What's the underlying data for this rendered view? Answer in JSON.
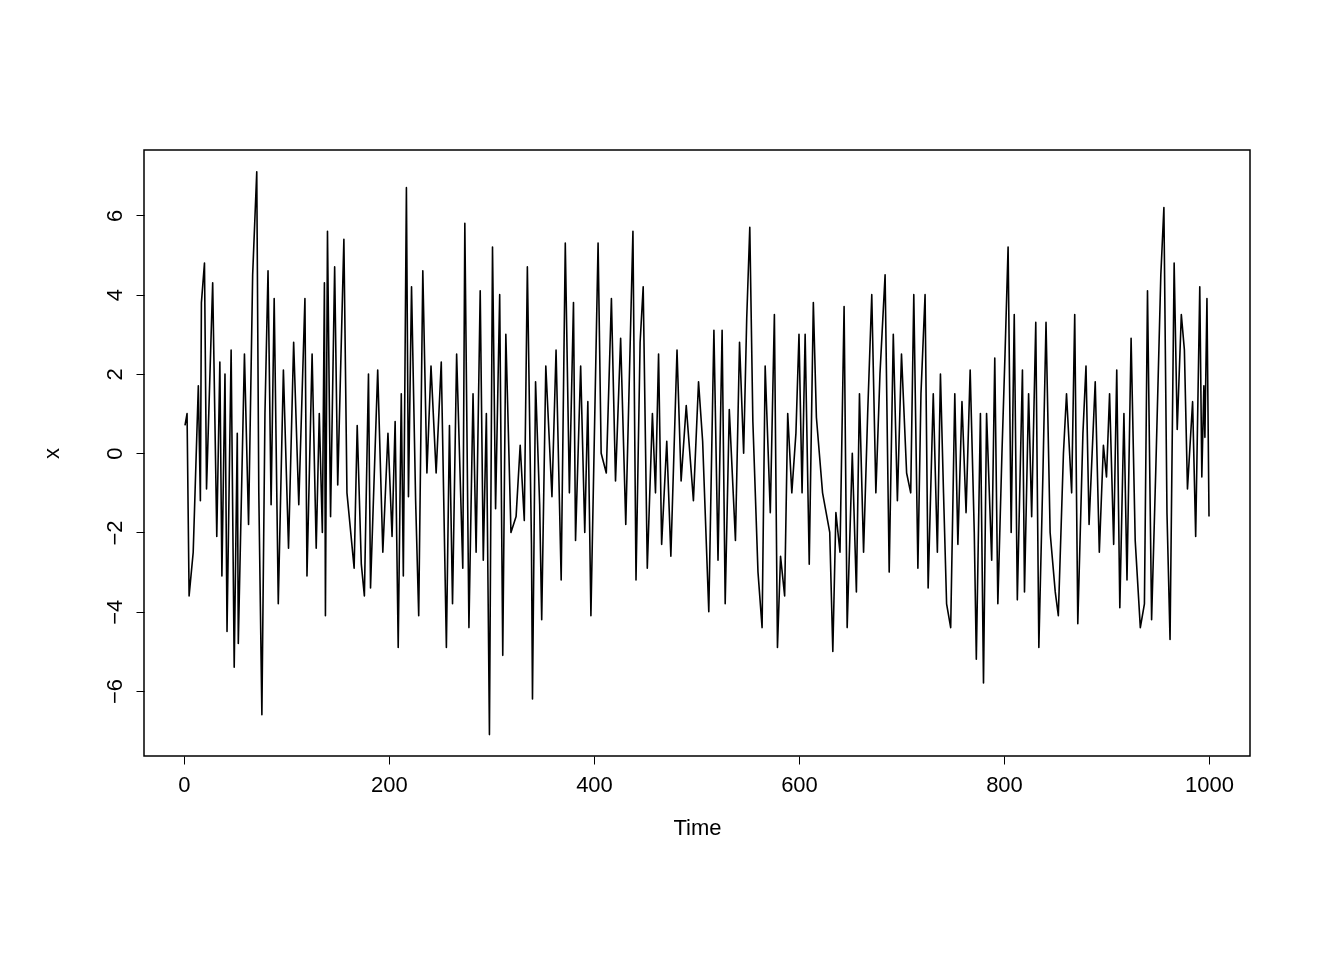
{
  "chart_data": {
    "type": "line",
    "xlabel": "Time",
    "ylabel": "x",
    "x": [
      1,
      3,
      5,
      9,
      14,
      16,
      17,
      20,
      22,
      28,
      32,
      35,
      37,
      40,
      42,
      46,
      49,
      52,
      53,
      59,
      63,
      67,
      71,
      73,
      76,
      79,
      82,
      85,
      88,
      92,
      97,
      102,
      107,
      112,
      118,
      120,
      125,
      129,
      132,
      135,
      137,
      138,
      140,
      143,
      147,
      150,
      156,
      159,
      166,
      169,
      173,
      176,
      180,
      182,
      189,
      194,
      199,
      203,
      206,
      209,
      212,
      214,
      217,
      219,
      222,
      226,
      229,
      233,
      237,
      241,
      246,
      251,
      256,
      259,
      262,
      266,
      272,
      274,
      278,
      282,
      285,
      289,
      292,
      295,
      298,
      301,
      304,
      308,
      311,
      314,
      319,
      324,
      328,
      332,
      335,
      339,
      340,
      343,
      347,
      349,
      353,
      359,
      363,
      368,
      372,
      376,
      380,
      382,
      387,
      391,
      394,
      397,
      404,
      407,
      412,
      417,
      421,
      426,
      431,
      438,
      441,
      445,
      448,
      452,
      457,
      460,
      463,
      466,
      471,
      475,
      481,
      485,
      490,
      497,
      502,
      506,
      512,
      517,
      521,
      525,
      528,
      532,
      538,
      542,
      546,
      549,
      552,
      555,
      560,
      564,
      567,
      572,
      576,
      579,
      582,
      586,
      589,
      593,
      597,
      600,
      603,
      606,
      610,
      614,
      617,
      623,
      630,
      633,
      636,
      640,
      644,
      647,
      652,
      656,
      659,
      663,
      667,
      671,
      675,
      679,
      684,
      688,
      692,
      696,
      700,
      705,
      709,
      712,
      716,
      719,
      723,
      726,
      731,
      735,
      738,
      741,
      744,
      748,
      752,
      755,
      759,
      763,
      767,
      771,
      773,
      777,
      780,
      783,
      788,
      791,
      794,
      798,
      801,
      804,
      807,
      810,
      813,
      818,
      820,
      824,
      827,
      831,
      834,
      838,
      841,
      845,
      850,
      853,
      858,
      861,
      866,
      869,
      872,
      877,
      880,
      883,
      889,
      893,
      897,
      900,
      903,
      907,
      910,
      913,
      917,
      920,
      924,
      928,
      933,
      937,
      940,
      944,
      948,
      953,
      956,
      959,
      962,
      966,
      969,
      973,
      976,
      979,
      984,
      987,
      991,
      993,
      995,
      996,
      998,
      1000
    ],
    "series": [
      {
        "color": "#000000",
        "values": [
          0.7,
          1.0,
          -3.6,
          -2.5,
          1.7,
          -1.2,
          3.8,
          4.8,
          -0.9,
          4.3,
          -2.1,
          2.3,
          -3.1,
          2.0,
          -4.5,
          2.6,
          -5.4,
          0.5,
          -4.8,
          2.5,
          -1.8,
          4.5,
          7.1,
          -1.0,
          -6.6,
          1.0,
          4.6,
          -1.3,
          3.9,
          -3.8,
          2.1,
          -2.4,
          2.8,
          -1.3,
          3.9,
          -3.1,
          2.5,
          -2.4,
          1.0,
          -2.0,
          4.3,
          -4.1,
          5.6,
          -1.6,
          4.7,
          -0.8,
          5.4,
          -1.0,
          -2.9,
          0.7,
          -2.8,
          -3.6,
          2.0,
          -3.4,
          2.1,
          -2.5,
          0.5,
          -2.1,
          0.8,
          -4.9,
          1.5,
          -3.1,
          6.7,
          -1.1,
          4.2,
          -1.2,
          -4.1,
          4.6,
          -0.5,
          2.2,
          -0.5,
          2.3,
          -4.9,
          0.7,
          -3.8,
          2.5,
          -2.9,
          5.8,
          -4.4,
          1.5,
          -2.5,
          4.1,
          -2.7,
          1.0,
          -7.1,
          5.2,
          -1.4,
          4.0,
          -5.1,
          3.0,
          -2.0,
          -1.6,
          0.2,
          -1.7,
          4.7,
          -2.3,
          -6.2,
          1.8,
          -1.3,
          -4.2,
          2.2,
          -1.1,
          2.6,
          -3.2,
          5.3,
          -1.0,
          3.8,
          -2.2,
          2.2,
          -2.0,
          1.3,
          -4.1,
          5.3,
          0.0,
          -0.5,
          3.9,
          -0.7,
          2.9,
          -1.8,
          5.6,
          -3.2,
          2.8,
          4.2,
          -2.9,
          1.0,
          -1.0,
          2.5,
          -2.3,
          0.3,
          -2.6,
          2.6,
          -0.7,
          1.2,
          -1.2,
          1.8,
          0.3,
          -4.0,
          3.1,
          -2.7,
          3.1,
          -3.8,
          1.1,
          -2.2,
          2.8,
          0.0,
          3.4,
          5.7,
          0.8,
          -3.0,
          -4.4,
          2.2,
          -1.5,
          3.5,
          -4.9,
          -2.6,
          -3.6,
          1.0,
          -1.0,
          0.5,
          3.0,
          -1.0,
          3.0,
          -2.8,
          3.8,
          0.9,
          -1.0,
          -2.0,
          -5.0,
          -1.5,
          -2.5,
          3.7,
          -4.4,
          0.0,
          -3.5,
          1.5,
          -2.5,
          1.0,
          4.0,
          -1.0,
          2.0,
          4.5,
          -3.0,
          3.0,
          -1.2,
          2.5,
          -0.5,
          -1.0,
          4.0,
          -2.9,
          1.5,
          4.0,
          -3.4,
          1.5,
          -2.5,
          2.0,
          -1.0,
          -3.8,
          -4.4,
          1.5,
          -2.3,
          1.3,
          -1.5,
          2.1,
          -2.0,
          -5.2,
          1.0,
          -5.8,
          1.0,
          -2.7,
          2.4,
          -3.8,
          0.0,
          2.5,
          5.2,
          -2.0,
          3.5,
          -3.7,
          2.1,
          -3.5,
          1.5,
          -1.6,
          3.3,
          -4.9,
          -0.5,
          3.3,
          -2.0,
          -3.5,
          -4.1,
          0.0,
          1.5,
          -1.0,
          3.5,
          -4.3,
          0.5,
          2.2,
          -1.8,
          1.8,
          -2.5,
          0.2,
          -0.6,
          1.5,
          -2.3,
          2.1,
          -3.9,
          1.0,
          -3.2,
          2.9,
          -2.2,
          -4.4,
          -3.8,
          4.1,
          -4.2,
          -0.5,
          4.5,
          6.2,
          -1.5,
          -4.7,
          4.8,
          0.6,
          3.5,
          2.6,
          -0.9,
          1.3,
          -2.1,
          4.2,
          -0.6,
          1.7,
          0.4,
          3.9,
          -1.6
        ]
      }
    ],
    "xlim": [
      -39,
      1040
    ],
    "ylim": [
      -7.64,
      7.65
    ],
    "xticks": [
      0,
      200,
      400,
      600,
      800,
      1000
    ],
    "yticks": [
      -6,
      -4,
      -2,
      0,
      2,
      4,
      6
    ],
    "grid": false,
    "marker": "none",
    "line_style": "solid"
  }
}
